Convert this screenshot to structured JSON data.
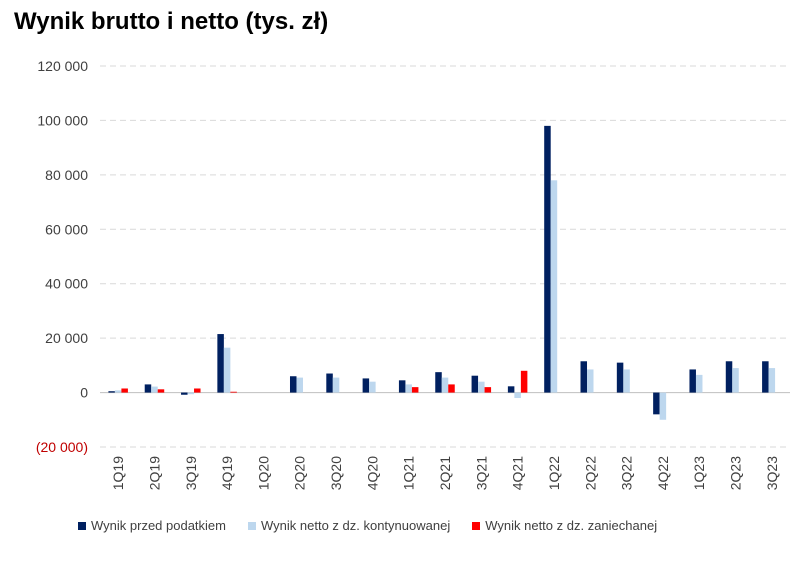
{
  "chart_data": {
    "type": "bar",
    "title": "Wynik brutto i netto (tys. zł)",
    "categories": [
      "1Q19",
      "2Q19",
      "3Q19",
      "4Q19",
      "1Q20",
      "2Q20",
      "3Q20",
      "4Q20",
      "1Q21",
      "2Q21",
      "3Q21",
      "4Q21",
      "1Q22",
      "2Q22",
      "3Q22",
      "4Q22",
      "1Q23",
      "2Q23",
      "3Q23"
    ],
    "series": [
      {
        "name": "Wynik przed podatkiem",
        "color": "#002060",
        "values": [
          500,
          3000,
          -800,
          21500,
          0,
          6000,
          7000,
          5200,
          4500,
          7500,
          6200,
          2300,
          98000,
          11500,
          11000,
          -8000,
          8500,
          11500,
          11500
        ]
      },
      {
        "name": "Wynik netto z dz. kontynuowanej",
        "color": "#bdd7ee",
        "values": [
          800,
          2200,
          -600,
          16500,
          0,
          5500,
          5500,
          4000,
          3000,
          5500,
          4000,
          -2000,
          78000,
          8500,
          8500,
          -10000,
          6500,
          9000,
          9000
        ]
      },
      {
        "name": "Wynik netto z dz. zaniechanej",
        "color": "#ff0000",
        "values": [
          1500,
          1200,
          1500,
          300,
          0,
          0,
          0,
          0,
          2000,
          3000,
          2000,
          8000,
          0,
          0,
          0,
          0,
          0,
          0,
          0
        ]
      }
    ],
    "ylim": [
      -20000,
      120000
    ],
    "yticks": [
      -20000,
      0,
      20000,
      40000,
      60000,
      80000,
      100000,
      120000
    ],
    "ytick_labels": [
      "(20 000)",
      "0",
      "20 000",
      "40 000",
      "60 000",
      "80 000",
      "100 000",
      "120 000"
    ],
    "grid": true,
    "legend_position": "bottom",
    "xlabel": "",
    "ylabel": ""
  }
}
